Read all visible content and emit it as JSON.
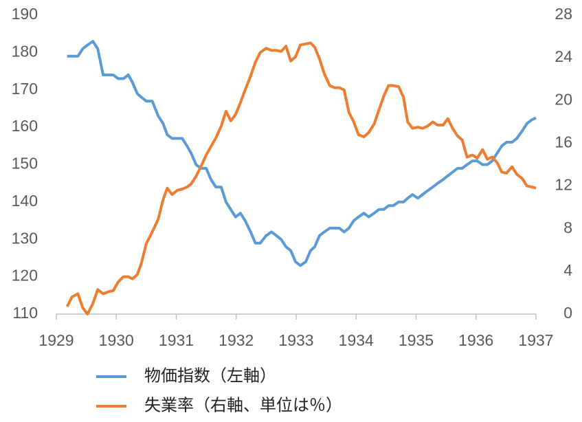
{
  "chart_data": {
    "type": "line",
    "x": [
      1929.18,
      1929.26,
      1929.36,
      1929.44,
      1929.52,
      1929.61,
      1929.69,
      1929.78,
      1929.87,
      1929.95,
      1930.03,
      1930.12,
      1930.2,
      1930.27,
      1930.35,
      1930.42,
      1930.5,
      1930.6,
      1930.7,
      1930.78,
      1930.85,
      1930.93,
      1931.02,
      1931.1,
      1931.18,
      1931.25,
      1931.33,
      1931.41,
      1931.5,
      1931.58,
      1931.66,
      1931.75,
      1931.83,
      1931.91,
      1931.99,
      1932.07,
      1932.15,
      1932.24,
      1932.32,
      1932.4,
      1932.5,
      1932.59,
      1932.67,
      1932.75,
      1932.83,
      1932.91,
      1932.99,
      1933.07,
      1933.16,
      1933.24,
      1933.31,
      1933.39,
      1933.47,
      1933.56,
      1933.64,
      1933.72,
      1933.8,
      1933.88,
      1933.96,
      1934.04,
      1934.13,
      1934.21,
      1934.3,
      1934.38,
      1934.46,
      1934.54,
      1934.62,
      1934.71,
      1934.79,
      1934.86,
      1934.94,
      1935.03,
      1935.11,
      1935.19,
      1935.28,
      1935.36,
      1935.45,
      1935.53,
      1935.61,
      1935.69,
      1935.77,
      1935.85,
      1935.94,
      1936.02,
      1936.11,
      1936.19,
      1936.27,
      1936.35,
      1936.43,
      1936.51,
      1936.6,
      1936.68,
      1936.77,
      1936.85,
      1936.93,
      1937.0
    ],
    "series": [
      {
        "name": "物価指数（左軸）",
        "color": "#5b9bd5",
        "axis": "y",
        "values": [
          179,
          179,
          179,
          181,
          182,
          183,
          181,
          174,
          174,
          174,
          173,
          173,
          174,
          172,
          169,
          168,
          167,
          167,
          163,
          161,
          158,
          157,
          157,
          157,
          155,
          153,
          150,
          149,
          149,
          146,
          144,
          144,
          140,
          138,
          136,
          137,
          135,
          132,
          129,
          129,
          131,
          132,
          131,
          130,
          128,
          127,
          124,
          123,
          124,
          127,
          128,
          131,
          132,
          133,
          133,
          133,
          132,
          133,
          135,
          136,
          137,
          136,
          137,
          138,
          138,
          139,
          139,
          140,
          140,
          141,
          142,
          141,
          142,
          143,
          144,
          145,
          146,
          147,
          148,
          149,
          149,
          150,
          151,
          151,
          150,
          150,
          151,
          153,
          155,
          156,
          156,
          157,
          159,
          161,
          162,
          162.5
        ]
      },
      {
        "name": "失業率（右軸、単位は％）",
        "color": "#ed7d31",
        "axis": "y2",
        "values": [
          0.7,
          1.6,
          1.9,
          0.6,
          0,
          1.0,
          2.3,
          1.9,
          2.1,
          2.2,
          3.0,
          3.5,
          3.5,
          3.3,
          3.7,
          4.8,
          6.6,
          7.7,
          8.9,
          10.7,
          11.8,
          11.2,
          11.6,
          11.7,
          11.9,
          12.2,
          12.9,
          13.8,
          14.9,
          15.7,
          16.5,
          17.6,
          19.0,
          18.1,
          18.7,
          19.8,
          21.0,
          22.3,
          23.6,
          24.5,
          24.9,
          24.7,
          24.7,
          24.6,
          25.1,
          23.7,
          24.1,
          25.2,
          25.3,
          25.4,
          25.0,
          23.9,
          22.5,
          21.4,
          21.2,
          21.2,
          21.0,
          18.9,
          18.0,
          16.8,
          16.6,
          17.0,
          17.8,
          19.1,
          20.4,
          21.4,
          21.4,
          21.3,
          20.3,
          18.0,
          17.4,
          17.5,
          17.4,
          17.6,
          18.0,
          17.7,
          17.7,
          18.3,
          17.4,
          16.7,
          16.3,
          14.7,
          14.9,
          14.6,
          15.4,
          14.5,
          14.7,
          14.2,
          13.3,
          13.2,
          13.8,
          13.1,
          12.7,
          12.0,
          11.9,
          11.8
        ]
      }
    ],
    "xlim": [
      1929,
      1937
    ],
    "xticks": [
      1929,
      1930,
      1931,
      1932,
      1933,
      1934,
      1935,
      1936,
      1937
    ],
    "ylim": [
      110,
      190
    ],
    "yticks": [
      110,
      120,
      130,
      140,
      150,
      160,
      170,
      180,
      190
    ],
    "y2lim": [
      0,
      28
    ],
    "y2ticks": [
      0,
      4,
      8,
      12,
      16,
      20,
      24,
      28
    ],
    "grid": false,
    "legend": "bottom"
  }
}
